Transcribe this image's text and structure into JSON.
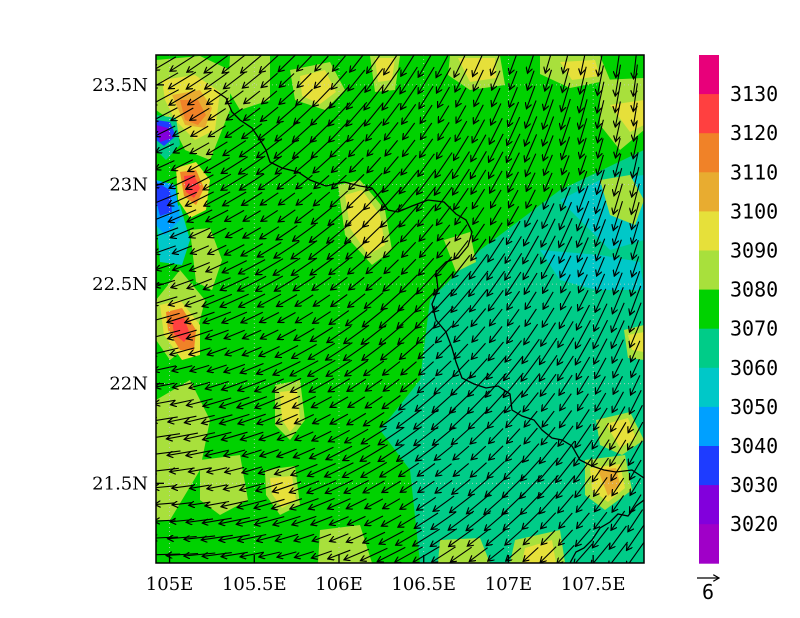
{
  "map": {
    "lon_range": [
      104.92,
      107.8
    ],
    "lat_range": [
      21.1,
      23.65
    ],
    "x_ticks": [
      {
        "value": 105.0,
        "label": "105E"
      },
      {
        "value": 105.5,
        "label": "105.5E"
      },
      {
        "value": 106.0,
        "label": "106E"
      },
      {
        "value": 106.5,
        "label": "106.5E"
      },
      {
        "value": 107.0,
        "label": "107E"
      },
      {
        "value": 107.5,
        "label": "107.5E"
      }
    ],
    "y_ticks": [
      {
        "value": 21.5,
        "label": "21.5N"
      },
      {
        "value": 22.0,
        "label": "22N"
      },
      {
        "value": 22.5,
        "label": "22.5N"
      },
      {
        "value": 23.0,
        "label": "23N"
      },
      {
        "value": 23.5,
        "label": "23.5N"
      }
    ],
    "grid": "dotted",
    "field": "filled-contour",
    "vectors": {
      "direction": "from northeast to southwest",
      "reference_label": "6"
    }
  },
  "colorbar": {
    "placement": "right",
    "levels": [
      {
        "label": "3130",
        "color": "#e8007a"
      },
      {
        "label": "3120",
        "color": "#ff4040"
      },
      {
        "label": "3110",
        "color": "#f08228"
      },
      {
        "label": "3100",
        "color": "#e8ac30"
      },
      {
        "label": "3090",
        "color": "#e6e03a"
      },
      {
        "label": "3080",
        "color": "#a8e03c"
      },
      {
        "label": "3070",
        "color": "#00d200"
      },
      {
        "label": "3060",
        "color": "#00cc88"
      },
      {
        "label": "3050",
        "color": "#00c8c8"
      },
      {
        "label": "3040",
        "color": "#00a0ff"
      },
      {
        "label": "3030",
        "color": "#1e3cff"
      },
      {
        "label": "3020",
        "color": "#8200dc"
      },
      {
        "label": "",
        "color": "#a000c8"
      }
    ]
  }
}
